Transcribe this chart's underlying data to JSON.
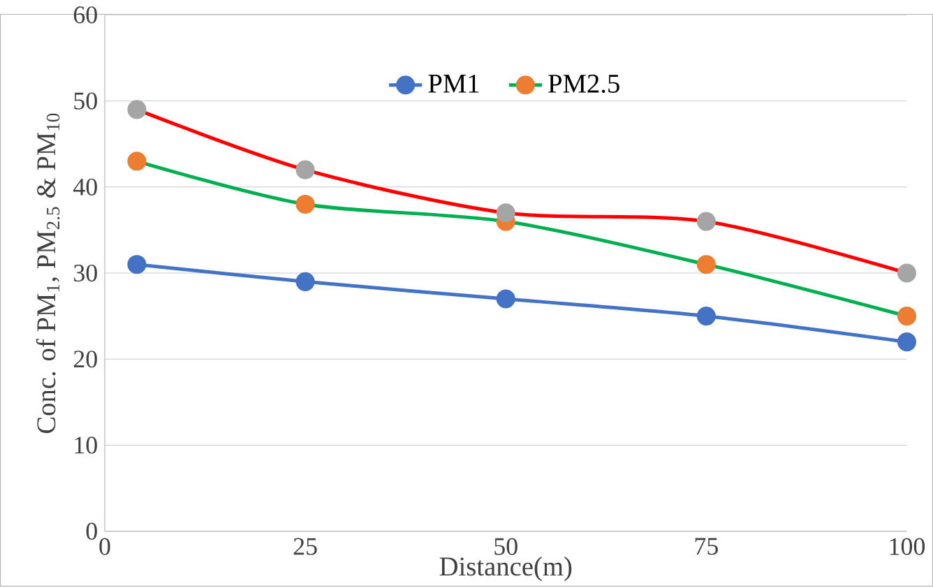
{
  "chart_data": {
    "type": "line",
    "xlabel": "Distance(m)",
    "ylabel": "Conc. of PM$_{1}$, PM$_{2.5}$ & PM$_{10}$",
    "x": [
      4,
      25,
      50,
      75,
      100
    ],
    "xlim": [
      0,
      100
    ],
    "xticks": [
      0,
      25,
      50,
      75,
      100
    ],
    "ylim": [
      0,
      60
    ],
    "yticks": [
      0,
      10,
      20,
      30,
      40,
      50,
      60
    ],
    "grid": "y",
    "legend": "top",
    "marker": "circle",
    "line_style": "solid",
    "series": [
      {
        "name": "PM1",
        "color": "#4472c4",
        "colors": [
          "#4472c4",
          "#4472c4",
          "#4472c4",
          "#4472c4",
          "#4472c4"
        ],
        "values": [
          31,
          29,
          27,
          25,
          22
        ]
      },
      {
        "name": "PM2.5",
        "color": "#00b050",
        "colors": [
          "#ed7d31",
          "#ed7d31",
          "#ed7d31",
          "#ed7d31",
          "#ed7d31"
        ],
        "values": [
          43,
          38,
          36,
          31,
          25
        ]
      },
      {
        "color": "#ff0000",
        "colors": [
          "#a5a5a5",
          "#a5a5a5",
          "#a5a5a5",
          "#a5a5a5",
          "#a5a5a5"
        ],
        "values": [
          49,
          42,
          37,
          36,
          30
        ]
      }
    ]
  }
}
